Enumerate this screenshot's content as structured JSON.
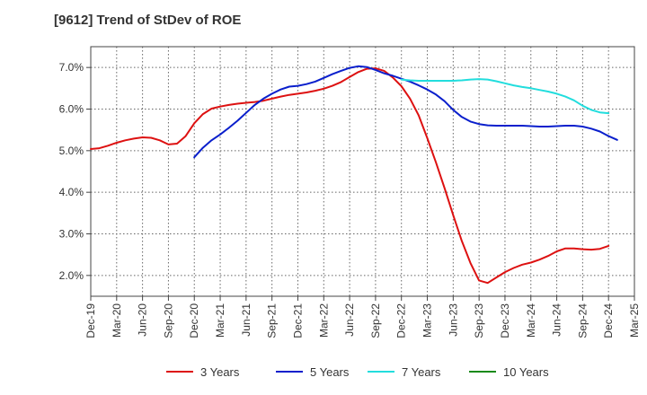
{
  "chart_data": {
    "type": "line",
    "title": "[9612]  Trend of StDev of ROE",
    "xlabel": "",
    "ylabel": "",
    "ylim": [
      1.5,
      7.5
    ],
    "y_ticks": [
      2.0,
      3.0,
      4.0,
      5.0,
      6.0,
      7.0
    ],
    "y_tick_labels": [
      "2.0%",
      "3.0%",
      "4.0%",
      "5.0%",
      "6.0%",
      "7.0%"
    ],
    "x_tick_labels": [
      "Dec-19",
      "Mar-20",
      "Jun-20",
      "Sep-20",
      "Dec-20",
      "Mar-21",
      "Jun-21",
      "Sep-21",
      "Dec-21",
      "Mar-22",
      "Jun-22",
      "Sep-22",
      "Dec-22",
      "Mar-23",
      "Jun-23",
      "Sep-23",
      "Dec-23",
      "Mar-24",
      "Jun-24",
      "Sep-24",
      "Dec-24",
      "Mar-25"
    ],
    "grid": true,
    "legend_position": "bottom",
    "series": [
      {
        "name": "3 Years",
        "color": "#dd1111",
        "values": [
          {
            "x": "Dec-19",
            "y": 5.04
          },
          {
            "x": "Jan-20",
            "y": 5.06
          },
          {
            "x": "Feb-20",
            "y": 5.12
          },
          {
            "x": "Mar-20",
            "y": 5.19
          },
          {
            "x": "Apr-20",
            "y": 5.25
          },
          {
            "x": "May-20",
            "y": 5.29
          },
          {
            "x": "Jun-20",
            "y": 5.32
          },
          {
            "x": "Jul-20",
            "y": 5.31
          },
          {
            "x": "Aug-20",
            "y": 5.25
          },
          {
            "x": "Sep-20",
            "y": 5.15
          },
          {
            "x": "Oct-20",
            "y": 5.17
          },
          {
            "x": "Nov-20",
            "y": 5.35
          },
          {
            "x": "Dec-20",
            "y": 5.66
          },
          {
            "x": "Jan-21",
            "y": 5.88
          },
          {
            "x": "Feb-21",
            "y": 6.01
          },
          {
            "x": "Mar-21",
            "y": 6.06
          },
          {
            "x": "Apr-21",
            "y": 6.1
          },
          {
            "x": "May-21",
            "y": 6.13
          },
          {
            "x": "Jun-21",
            "y": 6.15
          },
          {
            "x": "Jul-21",
            "y": 6.17
          },
          {
            "x": "Aug-21",
            "y": 6.2
          },
          {
            "x": "Sep-21",
            "y": 6.25
          },
          {
            "x": "Oct-21",
            "y": 6.3
          },
          {
            "x": "Nov-21",
            "y": 6.34
          },
          {
            "x": "Dec-21",
            "y": 6.37
          },
          {
            "x": "Jan-22",
            "y": 6.4
          },
          {
            "x": "Feb-22",
            "y": 6.44
          },
          {
            "x": "Mar-22",
            "y": 6.49
          },
          {
            "x": "Apr-22",
            "y": 6.56
          },
          {
            "x": "May-22",
            "y": 6.65
          },
          {
            "x": "Jun-22",
            "y": 6.77
          },
          {
            "x": "Jul-22",
            "y": 6.89
          },
          {
            "x": "Aug-22",
            "y": 6.97
          },
          {
            "x": "Sep-22",
            "y": 6.98
          },
          {
            "x": "Oct-22",
            "y": 6.92
          },
          {
            "x": "Nov-22",
            "y": 6.76
          },
          {
            "x": "Dec-22",
            "y": 6.55
          },
          {
            "x": "Jan-23",
            "y": 6.25
          },
          {
            "x": "Feb-23",
            "y": 5.85
          },
          {
            "x": "Mar-23",
            "y": 5.3
          },
          {
            "x": "Apr-23",
            "y": 4.72
          },
          {
            "x": "May-23",
            "y": 4.1
          },
          {
            "x": "Jun-23",
            "y": 3.45
          },
          {
            "x": "Jul-23",
            "y": 2.83
          },
          {
            "x": "Aug-23",
            "y": 2.3
          },
          {
            "x": "Sep-23",
            "y": 1.88
          },
          {
            "x": "Oct-23",
            "y": 1.82
          },
          {
            "x": "Nov-23",
            "y": 1.95
          },
          {
            "x": "Dec-23",
            "y": 2.08
          },
          {
            "x": "Jan-24",
            "y": 2.18
          },
          {
            "x": "Feb-24",
            "y": 2.26
          },
          {
            "x": "Mar-24",
            "y": 2.31
          },
          {
            "x": "Apr-24",
            "y": 2.38
          },
          {
            "x": "May-24",
            "y": 2.47
          },
          {
            "x": "Jun-24",
            "y": 2.58
          },
          {
            "x": "Jul-24",
            "y": 2.65
          },
          {
            "x": "Aug-24",
            "y": 2.65
          },
          {
            "x": "Sep-24",
            "y": 2.63
          },
          {
            "x": "Oct-24",
            "y": 2.62
          },
          {
            "x": "Nov-24",
            "y": 2.64
          },
          {
            "x": "Dec-24",
            "y": 2.71
          }
        ]
      },
      {
        "name": "5 Years",
        "color": "#0a1fcc",
        "values": [
          {
            "x": "Dec-20",
            "y": 4.84
          },
          {
            "x": "Jan-21",
            "y": 5.07
          },
          {
            "x": "Feb-21",
            "y": 5.25
          },
          {
            "x": "Mar-21",
            "y": 5.39
          },
          {
            "x": "Apr-21",
            "y": 5.55
          },
          {
            "x": "May-21",
            "y": 5.72
          },
          {
            "x": "Jun-21",
            "y": 5.91
          },
          {
            "x": "Jul-21",
            "y": 6.1
          },
          {
            "x": "Aug-21",
            "y": 6.25
          },
          {
            "x": "Sep-21",
            "y": 6.37
          },
          {
            "x": "Oct-21",
            "y": 6.47
          },
          {
            "x": "Nov-21",
            "y": 6.54
          },
          {
            "x": "Dec-21",
            "y": 6.56
          },
          {
            "x": "Jan-22",
            "y": 6.6
          },
          {
            "x": "Feb-22",
            "y": 6.66
          },
          {
            "x": "Mar-22",
            "y": 6.75
          },
          {
            "x": "Apr-22",
            "y": 6.84
          },
          {
            "x": "May-22",
            "y": 6.92
          },
          {
            "x": "Jun-22",
            "y": 6.99
          },
          {
            "x": "Jul-22",
            "y": 7.03
          },
          {
            "x": "Aug-22",
            "y": 7.01
          },
          {
            "x": "Sep-22",
            "y": 6.94
          },
          {
            "x": "Oct-22",
            "y": 6.86
          },
          {
            "x": "Nov-22",
            "y": 6.8
          },
          {
            "x": "Dec-22",
            "y": 6.73
          },
          {
            "x": "Jan-23",
            "y": 6.66
          },
          {
            "x": "Feb-23",
            "y": 6.57
          },
          {
            "x": "Mar-23",
            "y": 6.47
          },
          {
            "x": "Apr-23",
            "y": 6.35
          },
          {
            "x": "May-23",
            "y": 6.19
          },
          {
            "x": "Jun-23",
            "y": 5.98
          },
          {
            "x": "Jul-23",
            "y": 5.81
          },
          {
            "x": "Aug-23",
            "y": 5.7
          },
          {
            "x": "Sep-23",
            "y": 5.64
          },
          {
            "x": "Oct-23",
            "y": 5.61
          },
          {
            "x": "Nov-23",
            "y": 5.6
          },
          {
            "x": "Dec-23",
            "y": 5.6
          },
          {
            "x": "Jan-24",
            "y": 5.6
          },
          {
            "x": "Feb-24",
            "y": 5.6
          },
          {
            "x": "Mar-24",
            "y": 5.59
          },
          {
            "x": "Apr-24",
            "y": 5.58
          },
          {
            "x": "May-24",
            "y": 5.58
          },
          {
            "x": "Jun-24",
            "y": 5.59
          },
          {
            "x": "Jul-24",
            "y": 5.6
          },
          {
            "x": "Aug-24",
            "y": 5.6
          },
          {
            "x": "Sep-24",
            "y": 5.58
          },
          {
            "x": "Oct-24",
            "y": 5.53
          },
          {
            "x": "Nov-24",
            "y": 5.46
          },
          {
            "x": "Dec-24",
            "y": 5.35
          },
          {
            "x": "Jan-25",
            "y": 5.26
          }
        ]
      },
      {
        "name": "7 Years",
        "color": "#22dddd",
        "values": [
          {
            "x": "Dec-22",
            "y": 6.71
          },
          {
            "x": "Jan-23",
            "y": 6.69
          },
          {
            "x": "Feb-23",
            "y": 6.68
          },
          {
            "x": "Mar-23",
            "y": 6.68
          },
          {
            "x": "Apr-23",
            "y": 6.68
          },
          {
            "x": "May-23",
            "y": 6.68
          },
          {
            "x": "Jun-23",
            "y": 6.68
          },
          {
            "x": "Jul-23",
            "y": 6.69
          },
          {
            "x": "Aug-23",
            "y": 6.71
          },
          {
            "x": "Sep-23",
            "y": 6.72
          },
          {
            "x": "Oct-23",
            "y": 6.71
          },
          {
            "x": "Nov-23",
            "y": 6.67
          },
          {
            "x": "Dec-23",
            "y": 6.62
          },
          {
            "x": "Jan-24",
            "y": 6.57
          },
          {
            "x": "Feb-24",
            "y": 6.53
          },
          {
            "x": "Mar-24",
            "y": 6.5
          },
          {
            "x": "Apr-24",
            "y": 6.46
          },
          {
            "x": "May-24",
            "y": 6.42
          },
          {
            "x": "Jun-24",
            "y": 6.37
          },
          {
            "x": "Jul-24",
            "y": 6.3
          },
          {
            "x": "Aug-24",
            "y": 6.21
          },
          {
            "x": "Sep-24",
            "y": 6.08
          },
          {
            "x": "Oct-24",
            "y": 5.98
          },
          {
            "x": "Nov-24",
            "y": 5.92
          },
          {
            "x": "Dec-24",
            "y": 5.9
          }
        ]
      },
      {
        "name": "10 Years",
        "color": "#1a8a1a",
        "values": []
      }
    ]
  }
}
